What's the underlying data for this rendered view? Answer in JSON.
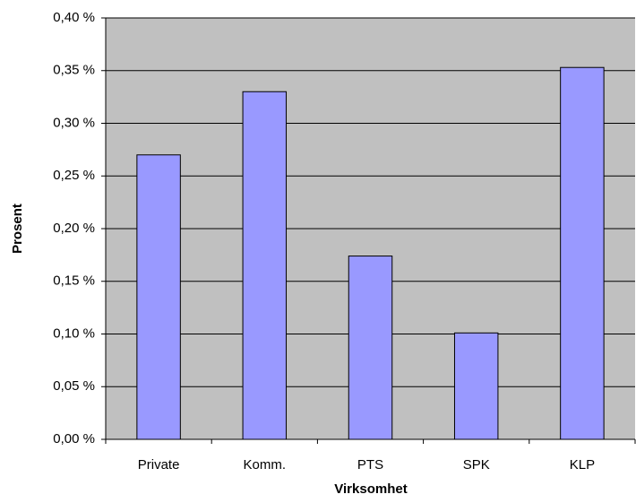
{
  "chart_data": {
    "type": "bar",
    "x_label": "Virksomhet",
    "y_label": "Prosent",
    "categories": [
      "Private",
      "Komm.",
      "PTS",
      "SPK",
      "KLP"
    ],
    "values": [
      0.27,
      0.33,
      0.174,
      0.101,
      0.353
    ],
    "color": "#9999ff",
    "background": "#c0c0c0",
    "ylim": [
      0,
      0.4
    ],
    "yticks": [
      {
        "value": 0,
        "label": "0,00 %"
      },
      {
        "value": 0.05,
        "label": "0,05 %"
      },
      {
        "value": 0.1,
        "label": "0,10 %"
      },
      {
        "value": 0.15,
        "label": "0,15 %"
      },
      {
        "value": 0.2,
        "label": "0,20 %"
      },
      {
        "value": 0.25,
        "label": "0,25 %"
      },
      {
        "value": 0.3,
        "label": "0,30 %"
      },
      {
        "value": 0.35,
        "label": "0,35 %"
      },
      {
        "value": 0.4,
        "label": "0,40 %"
      }
    ],
    "grid": true
  }
}
